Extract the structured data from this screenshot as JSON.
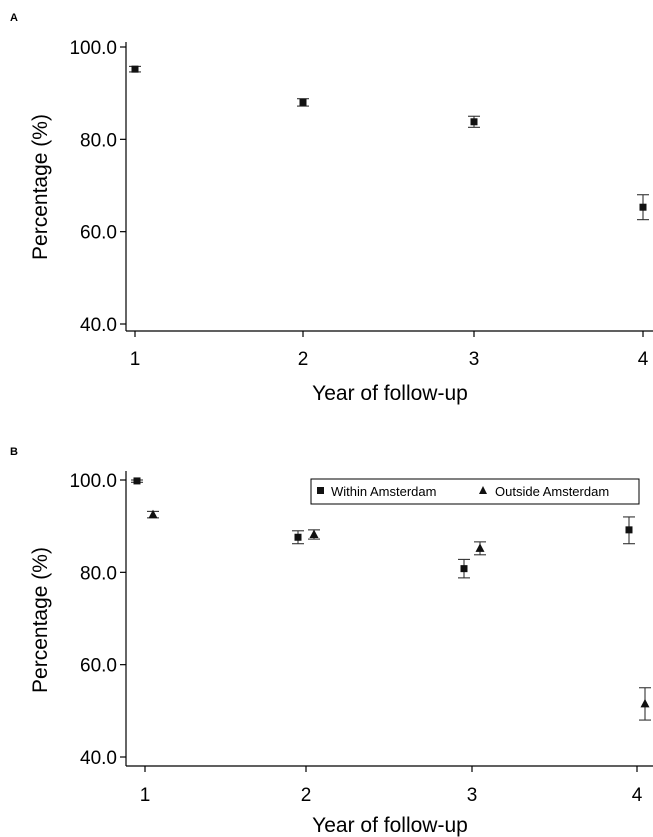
{
  "chart_data": [
    {
      "panel_label": "A",
      "type": "scatter",
      "error_bars": true,
      "xlabel": "Year of follow-up",
      "ylabel": "Percentage (%)",
      "x_ticks": [
        "1",
        "2",
        "3",
        "4"
      ],
      "y_ticks": [
        "40.0",
        "60.0",
        "80.0",
        "100.0"
      ],
      "xlim": [
        1,
        4
      ],
      "ylim": [
        38,
        102
      ],
      "legend": null,
      "series": [
        {
          "marker": "square",
          "color": "#111111",
          "points": [
            {
              "x": 1,
              "y": 95.2,
              "lo": 94.6,
              "hi": 95.8
            },
            {
              "x": 2,
              "y": 88.0,
              "lo": 87.2,
              "hi": 88.8
            },
            {
              "x": 3,
              "y": 83.8,
              "lo": 82.6,
              "hi": 85.0
            },
            {
              "x": 4,
              "y": 65.3,
              "lo": 62.6,
              "hi": 68.0
            }
          ]
        }
      ]
    },
    {
      "panel_label": "B",
      "type": "scatter",
      "error_bars": true,
      "xlabel": "Year of follow-up",
      "ylabel": "Percentage (%)",
      "x_ticks": [
        "1",
        "2",
        "3",
        "4"
      ],
      "y_ticks": [
        "40.0",
        "60.0",
        "80.0",
        "100.0"
      ],
      "xlim": [
        1,
        4
      ],
      "ylim": [
        38,
        102
      ],
      "legend": "top-right",
      "series": [
        {
          "name": "Within Amsterdam",
          "marker": "square",
          "color": "#111111",
          "points": [
            {
              "x": 1,
              "y": 99.8,
              "lo": 99.5,
              "hi": 100.0
            },
            {
              "x": 2,
              "y": 87.6,
              "lo": 86.2,
              "hi": 89.0
            },
            {
              "x": 3,
              "y": 80.8,
              "lo": 78.8,
              "hi": 82.8
            },
            {
              "x": 4,
              "y": 89.2,
              "lo": 86.2,
              "hi": 92.0
            }
          ]
        },
        {
          "name": "Outside Amsterdam",
          "marker": "triangle",
          "color": "#111111",
          "points": [
            {
              "x": 1,
              "y": 92.5,
              "lo": 91.8,
              "hi": 93.2
            },
            {
              "x": 2,
              "y": 88.2,
              "lo": 87.2,
              "hi": 89.2
            },
            {
              "x": 3,
              "y": 85.2,
              "lo": 83.8,
              "hi": 86.6
            },
            {
              "x": 4,
              "y": 51.5,
              "lo": 48.0,
              "hi": 55.0
            }
          ]
        }
      ]
    }
  ]
}
